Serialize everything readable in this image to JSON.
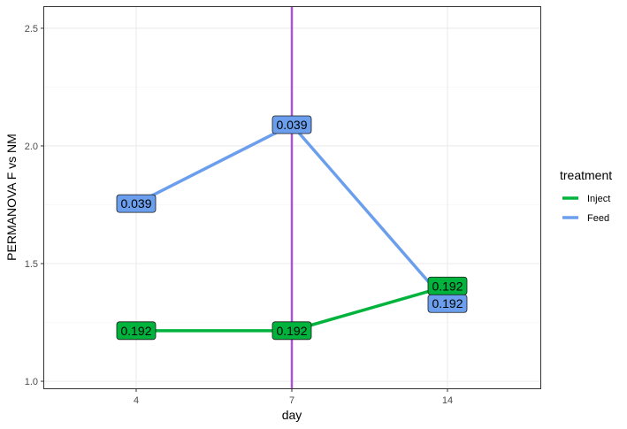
{
  "chart_data": {
    "type": "line",
    "xlabel": "day",
    "ylabel": "PERMANOVA F vs NM",
    "x": [
      "4",
      "7",
      "14"
    ],
    "ylim": [
      0.97,
      2.59
    ],
    "y_ticks": [
      "1.0",
      "1.5",
      "2.0",
      "2.5"
    ],
    "grid": true,
    "vline_at_x": "7",
    "vline_color": "#a855d8",
    "legend": {
      "title": "treatment",
      "placement": "right"
    },
    "series": [
      {
        "name": "Inject",
        "color": "#00b33c",
        "values": [
          1.215,
          1.215,
          1.405
        ],
        "labels": [
          "0.192",
          "0.192",
          "0.192"
        ]
      },
      {
        "name": "Feed",
        "color": "#6b9fed",
        "values": [
          1.755,
          2.09,
          1.33
        ],
        "labels": [
          "0.039",
          "0.039",
          "0.192"
        ]
      }
    ]
  }
}
